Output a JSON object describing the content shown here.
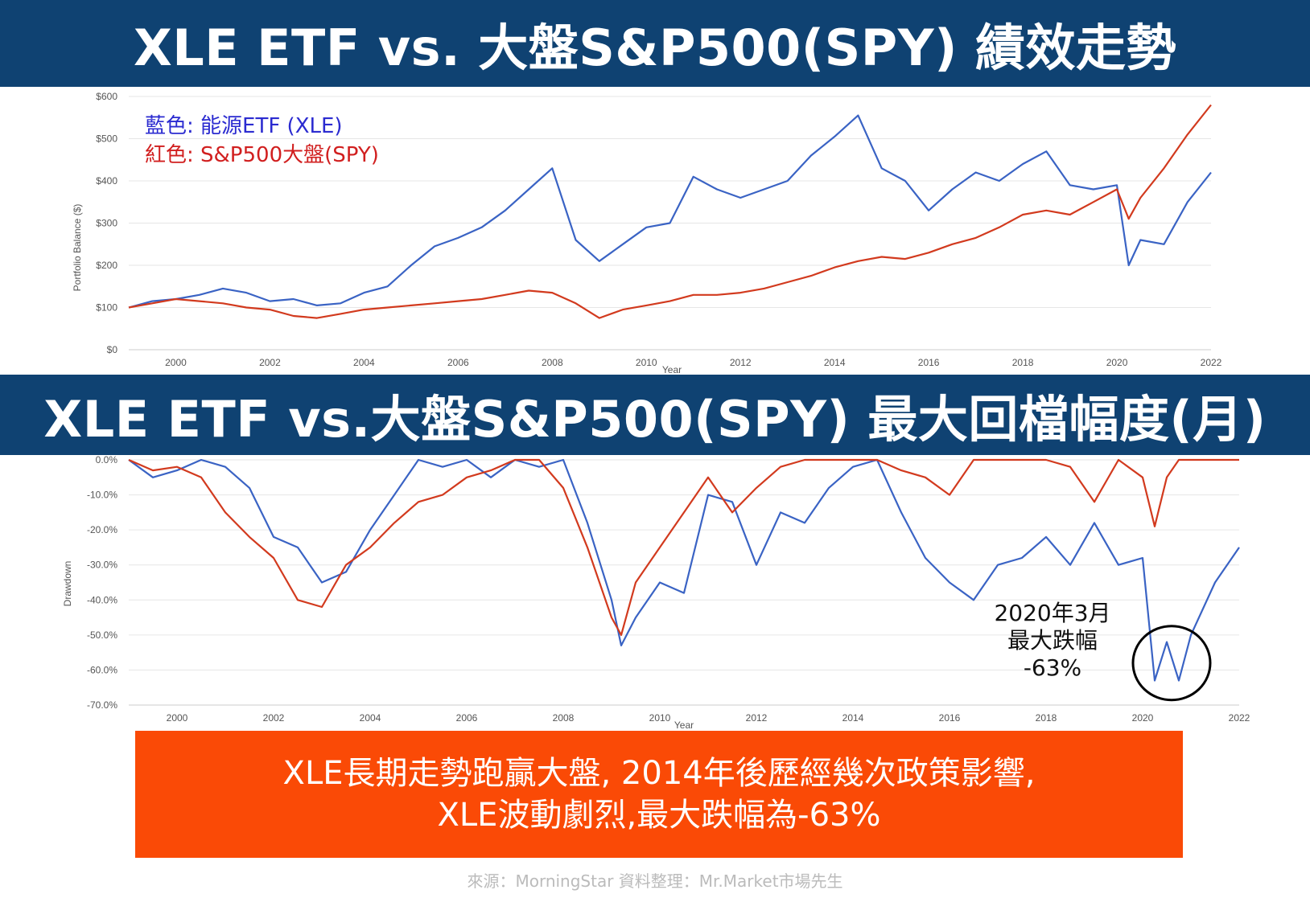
{
  "banners": {
    "top": "XLE ETF vs. 大盤S&P500(SPY) 績效走勢",
    "bottom": "XLE ETF vs.大盤S&P500(SPY) 最大回檔幅度(月)"
  },
  "colors": {
    "banner": "#0f4272",
    "xle": "#3a63c4",
    "spy": "#d23a1e",
    "summary_bg": "#fa4a06"
  },
  "chart_data": [
    {
      "type": "line",
      "title": "XLE ETF vs. 大盤S&P500(SPY) 績效走勢",
      "ylabel": "Portfolio Balance ($)",
      "xlabel": "Year",
      "ylim": [
        0,
        600
      ],
      "xlim": [
        1999,
        2022
      ],
      "yticks": [
        "$0",
        "$100",
        "$200",
        "$300",
        "$400",
        "$500",
        "$600"
      ],
      "xticks": [
        "2000",
        "2002",
        "2004",
        "2006",
        "2008",
        "2010",
        "2012",
        "2014",
        "2016",
        "2018",
        "2020",
        "2022"
      ],
      "legend": [
        "藍色: 能源ETF (XLE)",
        "紅色: S&P500大盤(SPY)"
      ],
      "series": [
        {
          "name": "XLE",
          "color": "#3a63c4",
          "x": [
            1999,
            1999.5,
            2000,
            2000.5,
            2001,
            2001.5,
            2002,
            2002.5,
            2003,
            2003.5,
            2004,
            2004.5,
            2005,
            2005.5,
            2006,
            2006.5,
            2007,
            2007.5,
            2008,
            2008.5,
            2009,
            2009.5,
            2010,
            2010.5,
            2011,
            2011.5,
            2012,
            2012.5,
            2013,
            2013.5,
            2014,
            2014.5,
            2015,
            2015.5,
            2016,
            2016.5,
            2017,
            2017.5,
            2018,
            2018.5,
            2019,
            2019.5,
            2020,
            2020.25,
            2020.5,
            2021,
            2021.5,
            2022
          ],
          "values": [
            100,
            115,
            120,
            130,
            145,
            135,
            115,
            120,
            105,
            110,
            135,
            150,
            200,
            245,
            265,
            290,
            330,
            380,
            430,
            260,
            210,
            250,
            290,
            300,
            410,
            380,
            360,
            380,
            400,
            460,
            505,
            555,
            430,
            400,
            330,
            380,
            420,
            400,
            440,
            470,
            390,
            380,
            390,
            200,
            260,
            250,
            350,
            420
          ]
        },
        {
          "name": "SPY",
          "color": "#d23a1e",
          "x": [
            1999,
            1999.5,
            2000,
            2000.5,
            2001,
            2001.5,
            2002,
            2002.5,
            2003,
            2003.5,
            2004,
            2004.5,
            2005,
            2005.5,
            2006,
            2006.5,
            2007,
            2007.5,
            2008,
            2008.5,
            2009,
            2009.5,
            2010,
            2010.5,
            2011,
            2011.5,
            2012,
            2012.5,
            2013,
            2013.5,
            2014,
            2014.5,
            2015,
            2015.5,
            2016,
            2016.5,
            2017,
            2017.5,
            2018,
            2018.5,
            2019,
            2019.5,
            2020,
            2020.25,
            2020.5,
            2021,
            2021.5,
            2022
          ],
          "values": [
            100,
            110,
            120,
            115,
            110,
            100,
            95,
            80,
            75,
            85,
            95,
            100,
            105,
            110,
            115,
            120,
            130,
            140,
            135,
            110,
            75,
            95,
            105,
            115,
            130,
            130,
            135,
            145,
            160,
            175,
            195,
            210,
            220,
            215,
            230,
            250,
            265,
            290,
            320,
            330,
            320,
            350,
            380,
            310,
            360,
            430,
            510,
            580
          ]
        }
      ]
    },
    {
      "type": "line",
      "title": "XLE ETF vs.大盤S&P500(SPY) 最大回檔幅度(月)",
      "ylabel": "Drawdown",
      "xlabel": "Year",
      "ylim": [
        -70,
        0
      ],
      "xlim": [
        1999,
        2022
      ],
      "yticks": [
        "0.0%",
        "-10.0%",
        "-20.0%",
        "-30.0%",
        "-40.0%",
        "-50.0%",
        "-60.0%",
        "-70.0%"
      ],
      "xticks": [
        "2000",
        "2002",
        "2004",
        "2006",
        "2008",
        "2010",
        "2012",
        "2014",
        "2016",
        "2018",
        "2020",
        "2022"
      ],
      "annotation": {
        "lines": [
          "2020年3月",
          "最大跌幅",
          "-63%"
        ],
        "x": 2020.6,
        "y": -58
      },
      "series": [
        {
          "name": "XLE",
          "color": "#3a63c4",
          "x": [
            1999,
            1999.5,
            2000,
            2000.5,
            2001,
            2001.5,
            2002,
            2002.5,
            2003,
            2003.5,
            2004,
            2004.5,
            2005,
            2005.5,
            2006,
            2006.5,
            2007,
            2007.5,
            2008,
            2008.5,
            2009,
            2009.2,
            2009.5,
            2010,
            2010.5,
            2011,
            2011.5,
            2012,
            2012.5,
            2013,
            2013.5,
            2014,
            2014.5,
            2015,
            2015.5,
            2016,
            2016.5,
            2017,
            2017.5,
            2018,
            2018.5,
            2019,
            2019.5,
            2020,
            2020.25,
            2020.5,
            2020.75,
            2021,
            2021.5,
            2022
          ],
          "values": [
            0,
            -5,
            -3,
            0,
            -2,
            -8,
            -22,
            -25,
            -35,
            -32,
            -20,
            -10,
            0,
            -2,
            0,
            -5,
            0,
            -2,
            0,
            -18,
            -40,
            -53,
            -45,
            -35,
            -38,
            -10,
            -12,
            -30,
            -15,
            -18,
            -8,
            -2,
            0,
            -15,
            -28,
            -35,
            -40,
            -30,
            -28,
            -22,
            -30,
            -18,
            -30,
            -28,
            -63,
            -52,
            -63,
            -50,
            -35,
            -25
          ]
        },
        {
          "name": "SPY",
          "color": "#d23a1e",
          "x": [
            1999,
            1999.5,
            2000,
            2000.5,
            2001,
            2001.5,
            2002,
            2002.5,
            2003,
            2003.5,
            2004,
            2004.5,
            2005,
            2005.5,
            2006,
            2006.5,
            2007,
            2007.5,
            2008,
            2008.5,
            2009,
            2009.2,
            2009.5,
            2010,
            2010.5,
            2011,
            2011.5,
            2012,
            2012.5,
            2013,
            2013.5,
            2014,
            2014.5,
            2015,
            2015.5,
            2016,
            2016.5,
            2017,
            2017.5,
            2018,
            2018.5,
            2019,
            2019.5,
            2020,
            2020.25,
            2020.5,
            2020.75,
            2021,
            2021.5,
            2022
          ],
          "values": [
            0,
            -3,
            -2,
            -5,
            -15,
            -22,
            -28,
            -40,
            -42,
            -30,
            -25,
            -18,
            -12,
            -10,
            -5,
            -3,
            0,
            0,
            -8,
            -25,
            -45,
            -50,
            -35,
            -25,
            -15,
            -5,
            -15,
            -8,
            -2,
            0,
            0,
            0,
            0,
            -3,
            -5,
            -10,
            0,
            0,
            0,
            0,
            -2,
            -12,
            0,
            -5,
            -19,
            -5,
            0,
            0,
            0,
            0
          ]
        }
      ]
    }
  ],
  "summary": {
    "line1": "XLE長期走勢跑贏大盤, 2014年後歷經幾次政策影響,",
    "line2": "XLE波動劇烈,最大跌幅為-63%"
  },
  "source": "來源：MorningStar  資料整理：Mr.Market市場先生"
}
